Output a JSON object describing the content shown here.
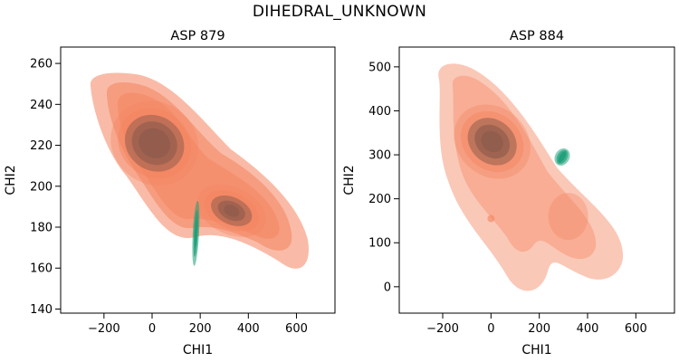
{
  "figure": {
    "title": "DIHEDRAL_UNKNOWN"
  },
  "chart_data": [
    {
      "type": "kde-contour",
      "title": "ASP 879",
      "xlabel": "CHI1",
      "ylabel": "CHI2",
      "xlim": [
        -380,
        760
      ],
      "ylim": [
        138,
        268
      ],
      "xticks": [
        -200,
        0,
        200,
        400,
        600
      ],
      "yticks": [
        140,
        160,
        180,
        200,
        220,
        240,
        260
      ],
      "grid": false,
      "series": [
        {
          "color": "#f4845f",
          "core_color": "#8c5a4a",
          "modes": [
            {
              "x": 10,
              "y": 221,
              "level": "high"
            },
            {
              "x": 330,
              "y": 188,
              "level": "medium"
            }
          ]
        },
        {
          "color": "#1a9e77",
          "modes": [
            {
              "x": 182,
              "y": 177,
              "level": "narrow"
            }
          ]
        }
      ]
    },
    {
      "type": "kde-contour",
      "title": "ASP 884",
      "xlabel": "CHI1",
      "ylabel": "CHI2",
      "xlim": [
        -380,
        760
      ],
      "ylim": [
        -60,
        545
      ],
      "xticks": [
        -200,
        0,
        200,
        400,
        600
      ],
      "yticks": [
        0,
        100,
        200,
        300,
        400,
        500
      ],
      "grid": false,
      "series": [
        {
          "color": "#f4845f",
          "core_color": "#8c5a4a",
          "modes": [
            {
              "x": 5,
              "y": 330,
              "level": "high"
            },
            {
              "x": 320,
              "y": 160,
              "level": "low"
            }
          ]
        },
        {
          "color": "#1a9e77",
          "modes": [
            {
              "x": 295,
              "y": 295,
              "level": "small"
            }
          ]
        }
      ]
    }
  ]
}
